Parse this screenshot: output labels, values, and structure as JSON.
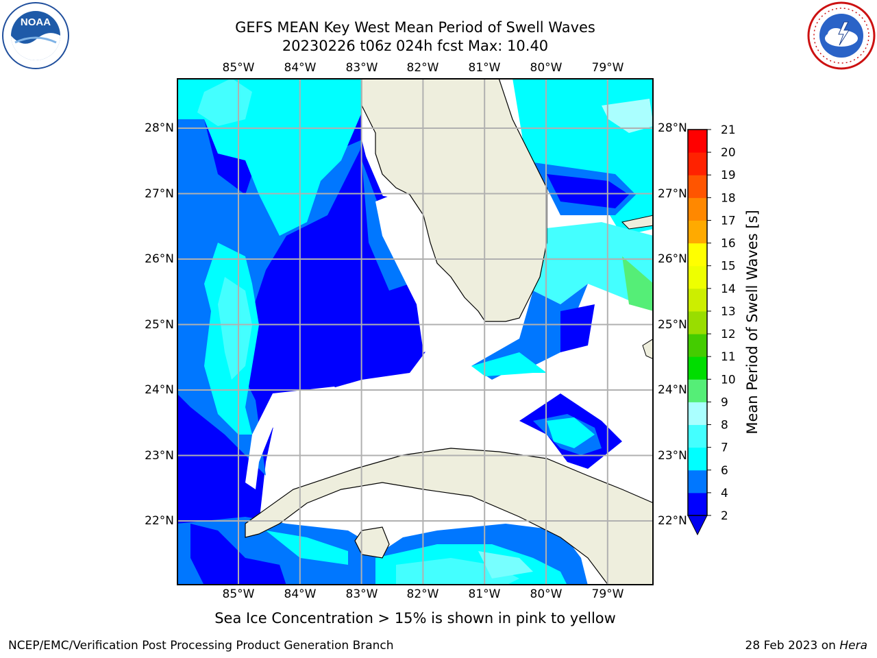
{
  "title": {
    "line1": "GEFS MEAN Key West Mean Period of Swell Waves",
    "line2": "20230226 t06z 024h fcst   Max: 10.40"
  },
  "map": {
    "lon_labels": [
      "85°W",
      "84°W",
      "83°W",
      "82°W",
      "81°W",
      "80°W",
      "79°W"
    ],
    "lon_values": [
      -85,
      -84,
      -83,
      -82,
      -81,
      -80,
      -79
    ],
    "lat_labels": [
      "28°N",
      "27°N",
      "26°N",
      "25°N",
      "24°N",
      "23°N",
      "22°N"
    ],
    "lat_values": [
      28,
      27,
      26,
      25,
      24,
      23,
      22
    ],
    "lon_range": [
      -86,
      -78.25
    ],
    "lat_range": [
      21.0,
      28.75
    ],
    "land_color": "#eeeedd",
    "grid_color": "#b0b0b0"
  },
  "colorbar": {
    "label": "Mean Period of Swell Waves [s]",
    "ticks": [
      "2",
      "4",
      "6",
      "7",
      "8",
      "9",
      "10",
      "11",
      "12",
      "13",
      "14",
      "15",
      "16",
      "17",
      "18",
      "19",
      "20",
      "21"
    ],
    "colors": [
      "#0000ff",
      "#0077ff",
      "#00ffff",
      "#44ffff",
      "#77ffff",
      "#aaffff",
      "#55ee77",
      "#00dd00",
      "#44cc00",
      "#99dd00",
      "#ccee00",
      "#eeff00",
      "#ffff00",
      "#ffcc00",
      "#ffaa00",
      "#ff8800",
      "#ff5500",
      "#ff2200",
      "#ff0000"
    ],
    "under_color": "#0000ee"
  },
  "footer": {
    "note": "Sea Ice Concentration > 15% is shown in pink to yellow",
    "credit_left": "NCEP/EMC/Verification Post Processing Product Generation Branch",
    "credit_right_prefix": "28 Feb 2023 on ",
    "credit_right_host": "Hera"
  },
  "logos": {
    "noaa": "NOAA",
    "nws_icon": "nws-logo-icon"
  }
}
